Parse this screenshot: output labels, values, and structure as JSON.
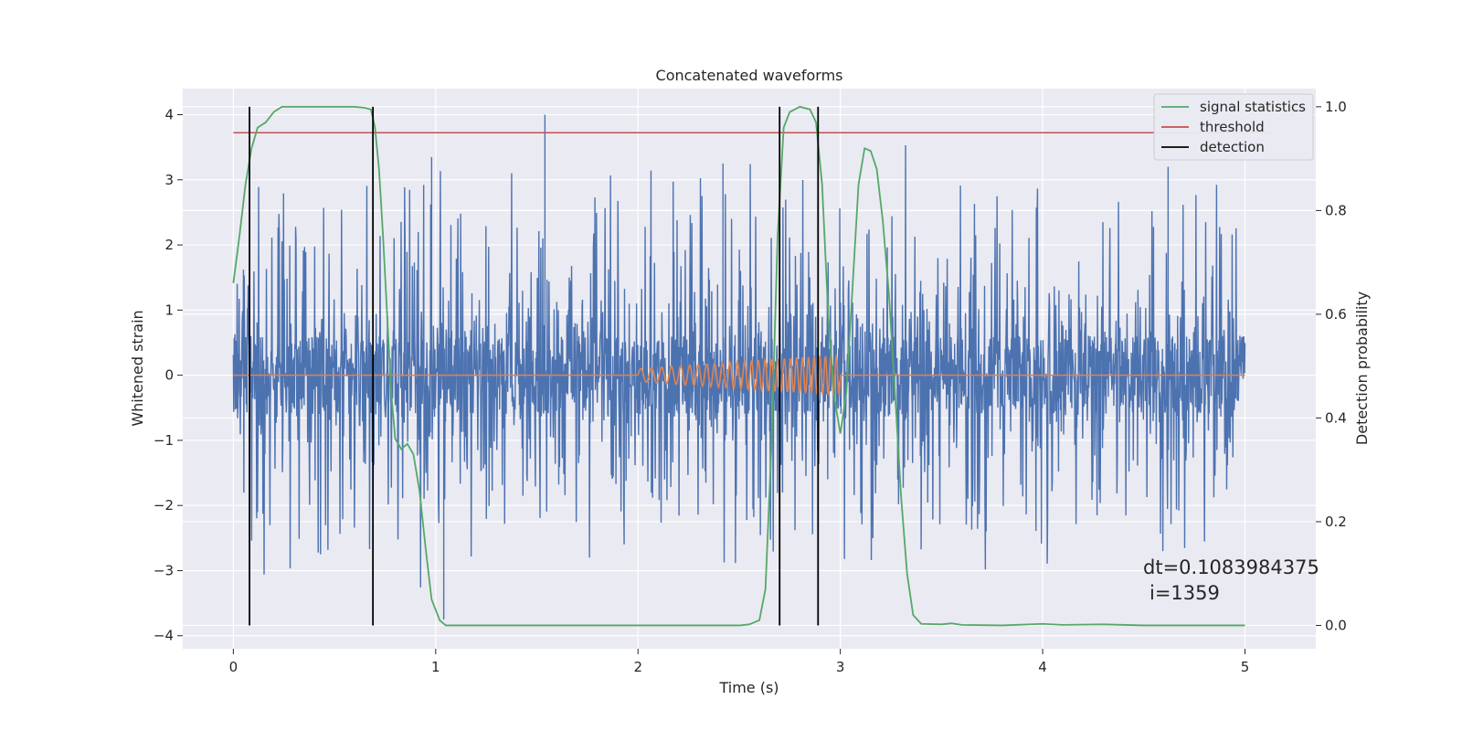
{
  "chart_data": {
    "type": "line",
    "title": "Concatenated waveforms",
    "xlabel": "Time (s)",
    "ylabel": "Whitened strain",
    "y2label": "Detection probability",
    "xlim": [
      -0.25,
      5.35
    ],
    "ylim": [
      -4.2,
      4.4
    ],
    "y2lim": [
      -0.045,
      1.035
    ],
    "xticks": [
      0,
      1,
      2,
      3,
      4,
      5
    ],
    "yticks": [
      -4,
      -3,
      -2,
      -1,
      0,
      1,
      2,
      3,
      4
    ],
    "y2ticks": [
      0.0,
      0.2,
      0.4,
      0.6,
      0.8,
      1.0
    ],
    "xtick_labels": [
      "0",
      "1",
      "2",
      "3",
      "4",
      "5"
    ],
    "ytick_labels": [
      "−4",
      "−3",
      "−2",
      "−1",
      "0",
      "1",
      "2",
      "3",
      "4"
    ],
    "y2tick_labels": [
      "0.0",
      "0.2",
      "0.4",
      "0.6",
      "0.8",
      "1.0"
    ],
    "grid": true,
    "background": "#eaeaf2",
    "legend_position": "top-right",
    "series": [
      {
        "name": "",
        "axis": "left",
        "color": "#4c72b0",
        "kind": "noise",
        "x_range": [
          0,
          5
        ],
        "amplitude_core": 0.6,
        "spike_max": 4.0,
        "spike_min": -3.75
      },
      {
        "name": "",
        "axis": "left",
        "color": "#dd8452",
        "kind": "chirp",
        "x_range": [
          0,
          5
        ],
        "chirp_start": 2.0,
        "chirp_end": 3.0,
        "amp_start": 0.1,
        "amp_end": 0.32
      },
      {
        "name": "signal statistics",
        "axis": "right",
        "color": "#55a868",
        "x": [
          0.0,
          0.03,
          0.06,
          0.09,
          0.12,
          0.16,
          0.2,
          0.24,
          0.3,
          0.4,
          0.5,
          0.6,
          0.65,
          0.68,
          0.7,
          0.72,
          0.74,
          0.76,
          0.78,
          0.8,
          0.83,
          0.86,
          0.89,
          0.92,
          0.95,
          0.98,
          1.02,
          1.05,
          1.1,
          1.2,
          1.4,
          1.6,
          1.8,
          2.0,
          2.2,
          2.4,
          2.5,
          2.55,
          2.6,
          2.63,
          2.66,
          2.69,
          2.72,
          2.75,
          2.8,
          2.85,
          2.88,
          2.91,
          2.94,
          2.97,
          3.0,
          3.03,
          3.06,
          3.09,
          3.12,
          3.15,
          3.18,
          3.21,
          3.24,
          3.27,
          3.3,
          3.33,
          3.36,
          3.4,
          3.5,
          3.55,
          3.6,
          3.8,
          4.0,
          4.1,
          4.3,
          4.5,
          4.7,
          5.0
        ],
        "y": [
          0.66,
          0.75,
          0.85,
          0.92,
          0.96,
          0.97,
          0.99,
          1.0,
          1.0,
          1.0,
          1.0,
          1.0,
          0.998,
          0.995,
          0.96,
          0.88,
          0.75,
          0.6,
          0.45,
          0.36,
          0.34,
          0.35,
          0.33,
          0.26,
          0.15,
          0.05,
          0.01,
          0.0,
          0.0,
          0.0,
          0.0,
          0.0,
          0.0,
          0.0,
          0.0,
          0.0,
          0.0,
          0.002,
          0.01,
          0.07,
          0.35,
          0.75,
          0.96,
          0.99,
          1.0,
          0.995,
          0.97,
          0.85,
          0.6,
          0.44,
          0.37,
          0.45,
          0.65,
          0.85,
          0.92,
          0.915,
          0.88,
          0.78,
          0.64,
          0.45,
          0.25,
          0.1,
          0.02,
          0.003,
          0.002,
          0.004,
          0.001,
          0.0,
          0.003,
          0.001,
          0.002,
          0.0,
          0.0,
          0.0
        ]
      },
      {
        "name": "threshold",
        "axis": "right",
        "color": "#c44e52",
        "x": [
          0,
          5
        ],
        "y": [
          0.95,
          0.95
        ]
      }
    ],
    "detections": {
      "name": "detection",
      "color": "#000000",
      "x": [
        0.08,
        0.69,
        2.7,
        2.89
      ],
      "y_range": [
        0.0,
        1.0
      ]
    },
    "annotation": {
      "lines": [
        "dt=0.1083984375",
        "i=1359"
      ],
      "x": 4.5,
      "y": -3.0
    }
  }
}
